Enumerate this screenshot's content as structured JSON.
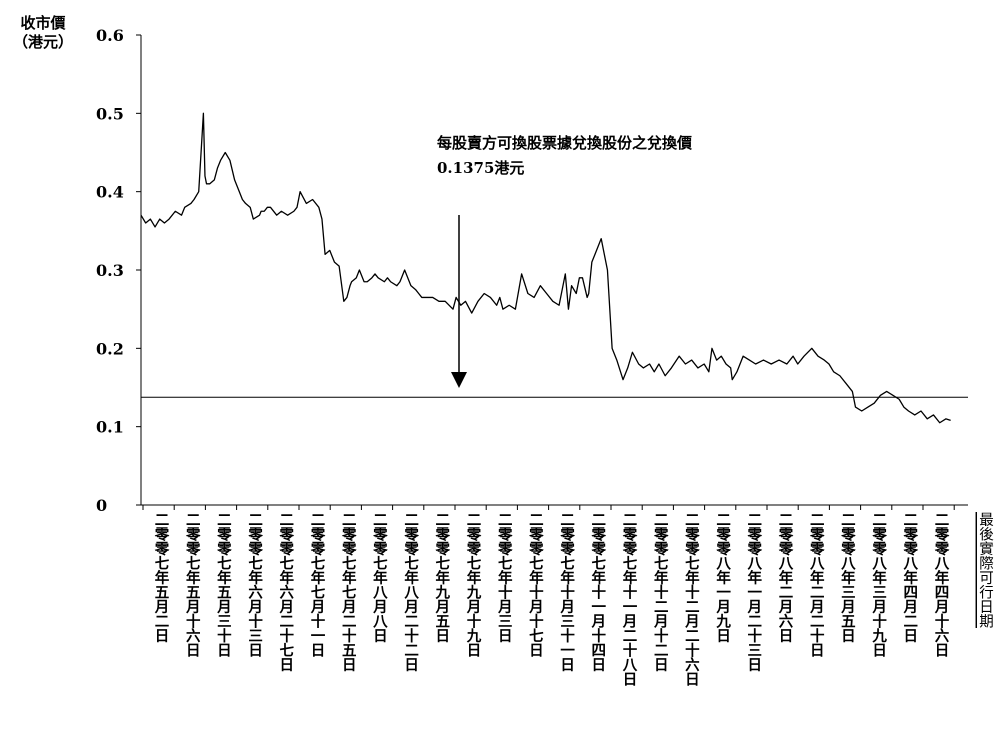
{
  "chart_data": {
    "type": "line",
    "ylabel_line1": "收市價",
    "ylabel_line2": "（港元）",
    "xlabel": "最後實際可行日期",
    "ylim": [
      0,
      0.6
    ],
    "yticks": [
      "0",
      "0.1",
      "0.2",
      "0.3",
      "0.4",
      "0.5",
      "0.6"
    ],
    "reference_line": {
      "value": 0.1375
    },
    "annotation_line1": "每股賣方可換股票據兌換股份之兌換價",
    "annotation_line2": "0.1375港元",
    "categories": [
      "二零零七年五月二日",
      "二零零七年五月十六日",
      "二零零七年五月三十日",
      "二零零七年六月十三日",
      "二零零七年六月二十七日",
      "二零零七年七月十一日",
      "二零零七年七月二十五日",
      "二零零七年八月八日",
      "二零零七年八月二十二日",
      "二零零七年九月五日",
      "二零零七年九月十九日",
      "二零零七年十月三日",
      "二零零七年十月十七日",
      "二零零七年十月三十一日",
      "二零零七年十一月十四日",
      "二零零七年十一月二十八日",
      "二零零七年十二月十二日",
      "二零零七年十二月二十六日",
      "二零零八年一月九日",
      "二零零八年一月二十三日",
      "二零零八年二月六日",
      "二零零八年二月二十日",
      "二零零八年三月五日",
      "二零零八年三月十九日",
      "二零零八年四月二日",
      "二零零八年四月十六日"
    ],
    "series": [
      {
        "color": "#000000",
        "x": [
          0,
          0.15,
          0.3,
          0.45,
          0.6,
          0.75,
          0.9,
          1.1,
          1.3,
          1.4,
          1.6,
          1.7,
          1.85,
          2.0,
          2.05,
          2.1,
          2.2,
          2.35,
          2.45,
          2.55,
          2.7,
          2.85,
          3.0,
          3.15,
          3.25,
          3.35,
          3.5,
          3.6,
          3.8,
          3.85,
          3.95,
          4.05,
          4.15,
          4.35,
          4.5,
          4.7,
          4.9,
          5.0,
          5.1,
          5.3,
          5.5,
          5.7,
          5.8,
          5.9,
          6.05,
          6.2,
          6.35,
          6.5,
          6.6,
          6.7,
          6.75,
          6.9,
          7.0,
          7.15,
          7.25,
          7.4,
          7.5,
          7.6,
          7.8,
          7.9,
          8.0,
          8.2,
          8.3,
          8.45,
          8.65,
          8.8,
          8.9,
          9.0,
          9.1,
          9.25,
          9.35,
          9.55,
          9.75,
          10.0,
          10.1,
          10.25,
          10.4,
          10.6,
          10.8,
          11.0,
          11.2,
          11.4,
          11.5,
          11.6,
          11.8,
          12.0,
          12.2,
          12.4,
          12.6,
          12.8,
          13.0,
          13.2,
          13.4,
          13.6,
          13.7,
          13.8,
          13.95,
          14.05,
          14.15,
          14.3,
          14.35,
          14.45,
          14.55,
          14.65,
          14.75,
          14.85,
          14.95,
          15.1,
          15.25,
          15.45,
          15.6,
          15.75,
          15.95,
          16.1,
          16.3,
          16.45,
          16.6,
          16.8,
          17.0,
          17.25,
          17.45,
          17.65,
          17.85,
          18.05,
          18.2,
          18.3,
          18.45,
          18.6,
          18.75,
          18.9,
          18.95,
          19.1,
          19.3,
          19.5,
          19.7,
          19.95,
          20.2,
          20.45,
          20.7,
          20.9,
          21.05,
          21.25,
          21.5,
          21.7,
          21.9,
          22.05,
          22.2,
          22.4,
          22.6,
          22.8,
          22.9,
          23.1,
          23.3,
          23.5,
          23.7,
          23.9,
          24.1,
          24.3,
          24.45,
          24.6,
          24.8,
          25.0,
          25.2,
          25.4,
          25.6,
          25.8,
          25.95
        ],
        "values": [
          0.37,
          0.36,
          0.365,
          0.355,
          0.365,
          0.36,
          0.365,
          0.375,
          0.37,
          0.38,
          0.385,
          0.39,
          0.4,
          0.5,
          0.42,
          0.41,
          0.41,
          0.415,
          0.43,
          0.44,
          0.45,
          0.44,
          0.415,
          0.4,
          0.39,
          0.385,
          0.38,
          0.365,
          0.37,
          0.375,
          0.375,
          0.38,
          0.38,
          0.37,
          0.375,
          0.37,
          0.375,
          0.38,
          0.4,
          0.385,
          0.39,
          0.38,
          0.365,
          0.32,
          0.325,
          0.31,
          0.305,
          0.26,
          0.265,
          0.28,
          0.285,
          0.29,
          0.3,
          0.285,
          0.285,
          0.29,
          0.295,
          0.29,
          0.285,
          0.29,
          0.285,
          0.28,
          0.285,
          0.3,
          0.28,
          0.275,
          0.27,
          0.265,
          0.265,
          0.265,
          0.265,
          0.26,
          0.26,
          0.25,
          0.265,
          0.255,
          0.26,
          0.245,
          0.26,
          0.27,
          0.265,
          0.255,
          0.265,
          0.25,
          0.255,
          0.25,
          0.295,
          0.27,
          0.265,
          0.28,
          0.27,
          0.26,
          0.255,
          0.295,
          0.25,
          0.28,
          0.27,
          0.29,
          0.29,
          0.265,
          0.27,
          0.31,
          0.32,
          0.33,
          0.34,
          0.32,
          0.3,
          0.2,
          0.185,
          0.16,
          0.175,
          0.195,
          0.18,
          0.175,
          0.18,
          0.17,
          0.18,
          0.165,
          0.175,
          0.19,
          0.18,
          0.185,
          0.175,
          0.18,
          0.17,
          0.2,
          0.185,
          0.19,
          0.18,
          0.175,
          0.16,
          0.17,
          0.19,
          0.185,
          0.18,
          0.185,
          0.18,
          0.185,
          0.18,
          0.19,
          0.18,
          0.19,
          0.2,
          0.19,
          0.185,
          0.18,
          0.17,
          0.165,
          0.155,
          0.145,
          0.125,
          0.12,
          0.125,
          0.13,
          0.14,
          0.145,
          0.14,
          0.135,
          0.125,
          0.12,
          0.115,
          0.12,
          0.11,
          0.115,
          0.105,
          0.11,
          0.108
        ]
      }
    ]
  }
}
